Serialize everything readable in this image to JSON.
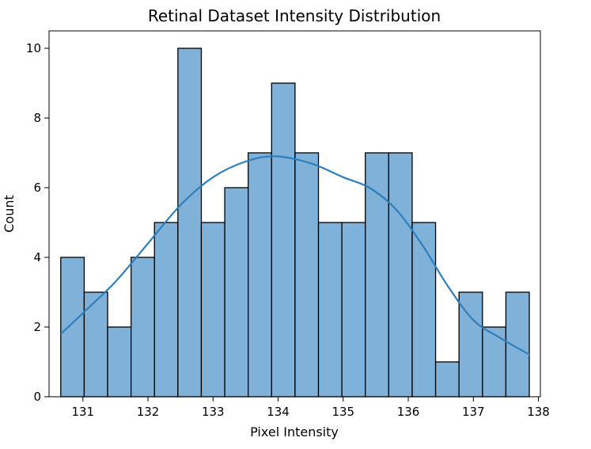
{
  "chart_data": {
    "type": "bar",
    "title": "Retinal Dataset Intensity Distribution",
    "xlabel": "Pixel Intensity",
    "ylabel": "Count",
    "xlim": [
      130.48,
      138.03
    ],
    "ylim": [
      0,
      10.5
    ],
    "x_ticks": [
      131,
      132,
      133,
      134,
      135,
      136,
      137,
      138
    ],
    "y_ticks": [
      0,
      2,
      4,
      6,
      8,
      10
    ],
    "bin_start": 130.66,
    "bin_width": 0.36,
    "values": [
      4,
      3,
      2,
      4,
      5,
      10,
      5,
      6,
      7,
      9,
      7,
      5,
      5,
      7,
      7,
      5,
      1,
      3,
      2,
      3
    ],
    "bar_color": "#7fb1d9",
    "edge_color": "#000000",
    "kde": {
      "color": "#2e7fbc",
      "x": [
        130.66,
        131.0,
        131.5,
        132.0,
        132.5,
        133.0,
        133.5,
        133.95,
        134.5,
        135.0,
        135.4,
        135.8,
        136.2,
        136.6,
        137.0,
        137.4,
        137.87
      ],
      "y": [
        1.8,
        2.4,
        3.3,
        4.4,
        5.5,
        6.3,
        6.75,
        6.9,
        6.7,
        6.3,
        6.0,
        5.4,
        4.4,
        3.2,
        2.2,
        1.7,
        1.2
      ]
    },
    "grid": false,
    "legend": "none"
  }
}
